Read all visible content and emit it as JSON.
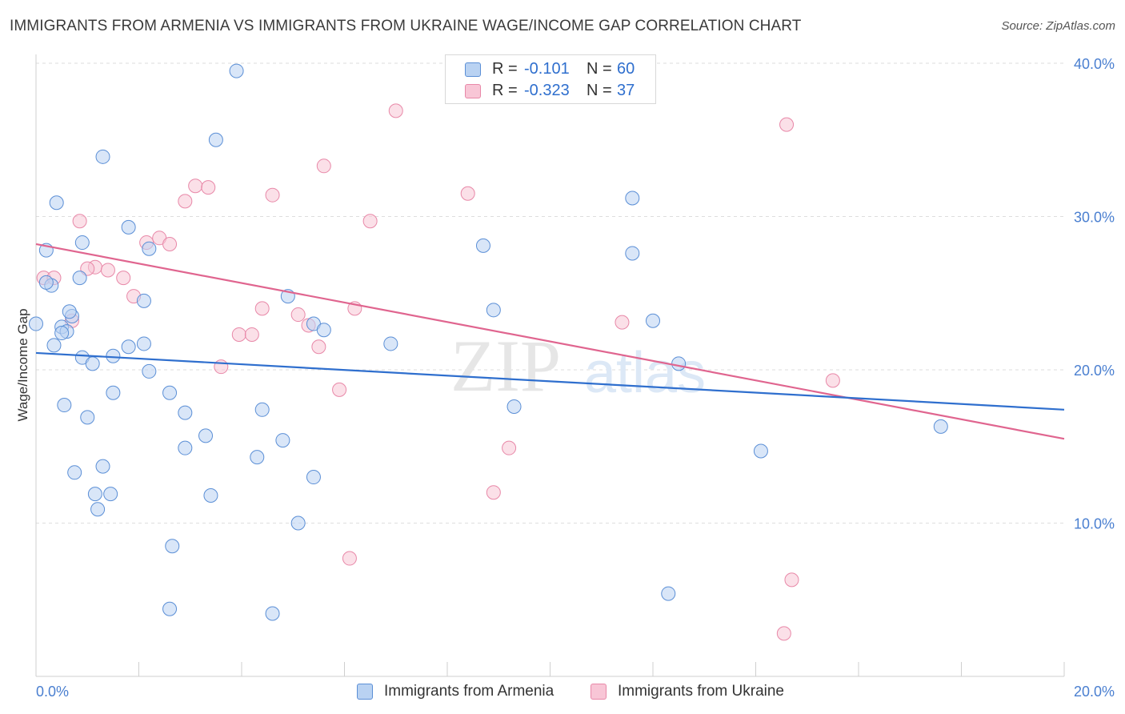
{
  "title": "IMMIGRANTS FROM ARMENIA VS IMMIGRANTS FROM UKRAINE WAGE/INCOME GAP CORRELATION CHART",
  "source": "Source: ZipAtlas.com",
  "watermark": {
    "zip": "ZIP",
    "atlas": "atlas"
  },
  "legend_top": {
    "rows": [
      {
        "r_label": "R = ",
        "r_value": "-0.101",
        "n_label": "N = ",
        "n_value": "60"
      },
      {
        "r_label": "R = ",
        "r_value": "-0.323",
        "n_label": "N = ",
        "n_value": "37"
      }
    ]
  },
  "colors": {
    "armenia_fill": "#b9d2f2",
    "armenia_stroke": "#5b8fd6",
    "armenia_line": "#2f6fce",
    "ukraine_fill": "#f8c6d6",
    "ukraine_stroke": "#e888a8",
    "ukraine_line": "#e0658f",
    "axis_label": "#4a7fd0"
  },
  "chart_data": {
    "type": "scatter",
    "title": "IMMIGRANTS FROM ARMENIA VS IMMIGRANTS FROM UKRAINE WAGE/INCOME GAP CORRELATION CHART",
    "xlabel": "",
    "ylabel": "Wage/Income Gap",
    "xlim": [
      0,
      20
    ],
    "ylim": [
      0,
      40
    ],
    "x_tick_labels": [
      "0.0%",
      "20.0%"
    ],
    "y_ticks": [
      10,
      20,
      30,
      40
    ],
    "y_tick_labels": [
      "10.0%",
      "20.0%",
      "30.0%",
      "40.0%"
    ],
    "grid": true,
    "legend_position": "bottom",
    "series": [
      {
        "name": "Immigrants from Armenia",
        "r": -0.101,
        "n": 60,
        "trend": [
          [
            0,
            21.1
          ],
          [
            20,
            17.4
          ]
        ],
        "points": [
          [
            0.0,
            23.0
          ],
          [
            0.2,
            27.8
          ],
          [
            0.3,
            25.5
          ],
          [
            0.2,
            25.7
          ],
          [
            0.4,
            30.9
          ],
          [
            0.5,
            22.8
          ],
          [
            0.6,
            22.5
          ],
          [
            0.7,
            23.5
          ],
          [
            0.35,
            21.6
          ],
          [
            0.65,
            23.8
          ],
          [
            0.85,
            26.0
          ],
          [
            0.9,
            28.3
          ],
          [
            0.9,
            20.8
          ],
          [
            1.1,
            20.4
          ],
          [
            1.3,
            33.9
          ],
          [
            1.5,
            20.9
          ],
          [
            1.5,
            18.5
          ],
          [
            1.8,
            29.3
          ],
          [
            1.8,
            21.5
          ],
          [
            2.2,
            27.9
          ],
          [
            2.1,
            21.7
          ],
          [
            2.1,
            24.5
          ],
          [
            2.2,
            19.9
          ],
          [
            0.55,
            17.7
          ],
          [
            1.0,
            16.9
          ],
          [
            0.75,
            13.3
          ],
          [
            1.3,
            13.7
          ],
          [
            1.15,
            11.9
          ],
          [
            1.45,
            11.9
          ],
          [
            1.2,
            10.9
          ],
          [
            2.6,
            18.5
          ],
          [
            2.9,
            17.2
          ],
          [
            2.9,
            14.9
          ],
          [
            3.3,
            15.7
          ],
          [
            3.4,
            11.8
          ],
          [
            2.65,
            8.5
          ],
          [
            2.6,
            4.4
          ],
          [
            3.5,
            35.0
          ],
          [
            3.9,
            39.5
          ],
          [
            4.4,
            17.4
          ],
          [
            4.3,
            14.3
          ],
          [
            4.9,
            24.8
          ],
          [
            4.8,
            15.4
          ],
          [
            5.4,
            23.0
          ],
          [
            5.6,
            22.6
          ],
          [
            5.4,
            13.0
          ],
          [
            5.1,
            10.0
          ],
          [
            4.6,
            4.1
          ],
          [
            6.9,
            21.7
          ],
          [
            8.7,
            28.1
          ],
          [
            8.9,
            23.9
          ],
          [
            9.3,
            17.6
          ],
          [
            11.6,
            31.2
          ],
          [
            11.6,
            27.6
          ],
          [
            12.0,
            23.2
          ],
          [
            12.5,
            20.4
          ],
          [
            12.3,
            5.4
          ],
          [
            14.1,
            14.7
          ],
          [
            17.6,
            16.3
          ],
          [
            0.5,
            22.4
          ]
        ]
      },
      {
        "name": "Immigrants from Ukraine",
        "r": -0.323,
        "n": 37,
        "trend": [
          [
            0,
            28.2
          ],
          [
            20,
            15.5
          ]
        ],
        "points": [
          [
            0.15,
            26.0
          ],
          [
            0.35,
            26.0
          ],
          [
            0.7,
            23.2
          ],
          [
            0.85,
            29.7
          ],
          [
            1.15,
            26.7
          ],
          [
            1.4,
            26.5
          ],
          [
            1.7,
            26.0
          ],
          [
            1.9,
            24.8
          ],
          [
            2.15,
            28.3
          ],
          [
            2.4,
            28.6
          ],
          [
            2.6,
            28.2
          ],
          [
            2.9,
            31.0
          ],
          [
            3.1,
            32.0
          ],
          [
            3.35,
            31.9
          ],
          [
            3.6,
            20.2
          ],
          [
            3.95,
            22.3
          ],
          [
            4.2,
            22.3
          ],
          [
            4.4,
            24.0
          ],
          [
            4.6,
            31.4
          ],
          [
            5.1,
            23.6
          ],
          [
            5.3,
            22.9
          ],
          [
            5.5,
            21.5
          ],
          [
            5.6,
            33.3
          ],
          [
            5.9,
            18.7
          ],
          [
            6.2,
            24.0
          ],
          [
            6.5,
            29.7
          ],
          [
            7.0,
            36.9
          ],
          [
            8.4,
            31.5
          ],
          [
            8.9,
            12.0
          ],
          [
            9.2,
            14.9
          ],
          [
            11.4,
            23.1
          ],
          [
            14.6,
            36.0
          ],
          [
            14.7,
            6.3
          ],
          [
            14.55,
            2.8
          ],
          [
            15.5,
            19.3
          ],
          [
            6.1,
            7.7
          ],
          [
            1.0,
            26.6
          ]
        ]
      }
    ]
  },
  "bottom_legend": [
    {
      "label": "Immigrants from Armenia"
    },
    {
      "label": "Immigrants from Ukraine"
    }
  ]
}
